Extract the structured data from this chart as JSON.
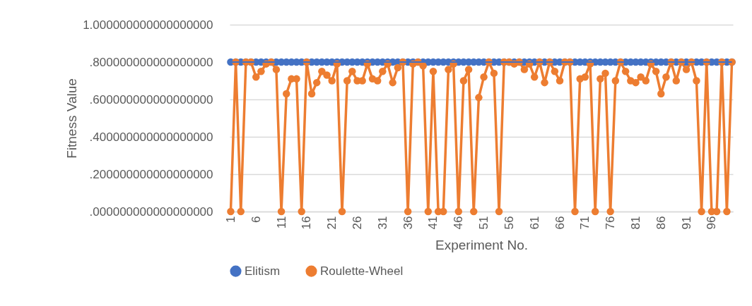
{
  "chart_data": {
    "type": "line",
    "xlabel": "Experiment No.",
    "ylabel": "Fitness Value",
    "categories": [
      "1",
      null,
      null,
      null,
      null,
      "6",
      null,
      null,
      null,
      null,
      "11",
      null,
      null,
      null,
      null,
      "16",
      null,
      null,
      null,
      null,
      "21",
      null,
      null,
      null,
      null,
      "26",
      null,
      null,
      null,
      null,
      "31",
      null,
      null,
      null,
      null,
      "36",
      null,
      null,
      null,
      null,
      "41",
      null,
      null,
      null,
      null,
      "46",
      null,
      null,
      null,
      null,
      "51",
      null,
      null,
      null,
      null,
      "56",
      null,
      null,
      null,
      null,
      "61",
      null,
      null,
      null,
      null,
      "66",
      null,
      null,
      null,
      null,
      "71",
      null,
      null,
      null,
      null,
      "76",
      null,
      null,
      null,
      null,
      "81",
      null,
      null,
      null,
      null,
      "86",
      null,
      null,
      null,
      null,
      "91",
      null,
      null,
      null,
      null,
      "96",
      null,
      null,
      null,
      null
    ],
    "series": [
      {
        "name": "Elitism",
        "color": "#4472c4",
        "values": [
          0.8,
          0.8,
          0.8,
          0.8,
          0.8,
          0.8,
          0.8,
          0.8,
          0.8,
          0.8,
          0.8,
          0.8,
          0.8,
          0.8,
          0.8,
          0.8,
          0.8,
          0.8,
          0.8,
          0.8,
          0.8,
          0.8,
          0.8,
          0.8,
          0.8,
          0.8,
          0.8,
          0.8,
          0.8,
          0.8,
          0.8,
          0.8,
          0.8,
          0.8,
          0.8,
          0.8,
          0.8,
          0.8,
          0.8,
          0.8,
          0.8,
          0.8,
          0.8,
          0.8,
          0.8,
          0.8,
          0.8,
          0.8,
          0.8,
          0.8,
          0.8,
          0.8,
          0.8,
          0.8,
          0.8,
          0.8,
          0.8,
          0.8,
          0.8,
          0.8,
          0.8,
          0.8,
          0.8,
          0.8,
          0.8,
          0.8,
          0.8,
          0.8,
          0.8,
          0.8,
          0.8,
          0.8,
          0.8,
          0.8,
          0.8,
          0.8,
          0.8,
          0.8,
          0.8,
          0.8,
          0.8,
          0.8,
          0.8,
          0.8,
          0.8,
          0.8,
          0.8,
          0.8,
          0.8,
          0.8,
          0.8,
          0.8,
          0.8,
          0.8,
          0.8,
          0.8,
          0.8,
          0.8,
          0.8,
          0.8
        ]
      },
      {
        "name": "Roulette-Wheel",
        "color": "#ed7d31",
        "values": [
          0,
          0.8,
          0,
          0.8,
          0.8,
          0.72,
          0.75,
          0.79,
          0.8,
          0.76,
          0,
          0.63,
          0.71,
          0.71,
          0,
          0.8,
          0.63,
          0.69,
          0.75,
          0.73,
          0.7,
          0.79,
          0,
          0.7,
          0.75,
          0.7,
          0.7,
          0.79,
          0.71,
          0.7,
          0.75,
          0.79,
          0.69,
          0.77,
          0.8,
          0,
          0.79,
          0.8,
          0.78,
          0,
          0.75,
          0,
          0,
          0.76,
          0.79,
          0,
          0.7,
          0.76,
          0,
          0.61,
          0.72,
          0.8,
          0.74,
          0,
          0.8,
          0.8,
          0.79,
          0.8,
          0.76,
          0.79,
          0.72,
          0.8,
          0.69,
          0.8,
          0.75,
          0.7,
          0.8,
          0.8,
          0,
          0.71,
          0.72,
          0.79,
          0,
          0.71,
          0.74,
          0,
          0.7,
          0.8,
          0.75,
          0.7,
          0.69,
          0.72,
          0.7,
          0.79,
          0.75,
          0.63,
          0.72,
          0.8,
          0.7,
          0.8,
          0.76,
          0.8,
          0.7,
          0,
          0.8,
          0,
          0,
          0.8,
          0,
          0.8
        ]
      }
    ],
    "ylim": [
      0,
      1
    ],
    "yticks": [
      {
        "value": 0,
        "label": ".000000000000000000"
      },
      {
        "value": 0.2,
        "label": ".200000000000000000"
      },
      {
        "value": 0.4,
        "label": ".400000000000000000"
      },
      {
        "value": 0.6,
        "label": ".600000000000000000"
      },
      {
        "value": 0.8,
        "label": ".800000000000000000"
      },
      {
        "value": 1,
        "label": "1.000000000000000000"
      }
    ],
    "grid": "y",
    "legend": "bottom",
    "marker": "circle",
    "line_style": "solid"
  }
}
